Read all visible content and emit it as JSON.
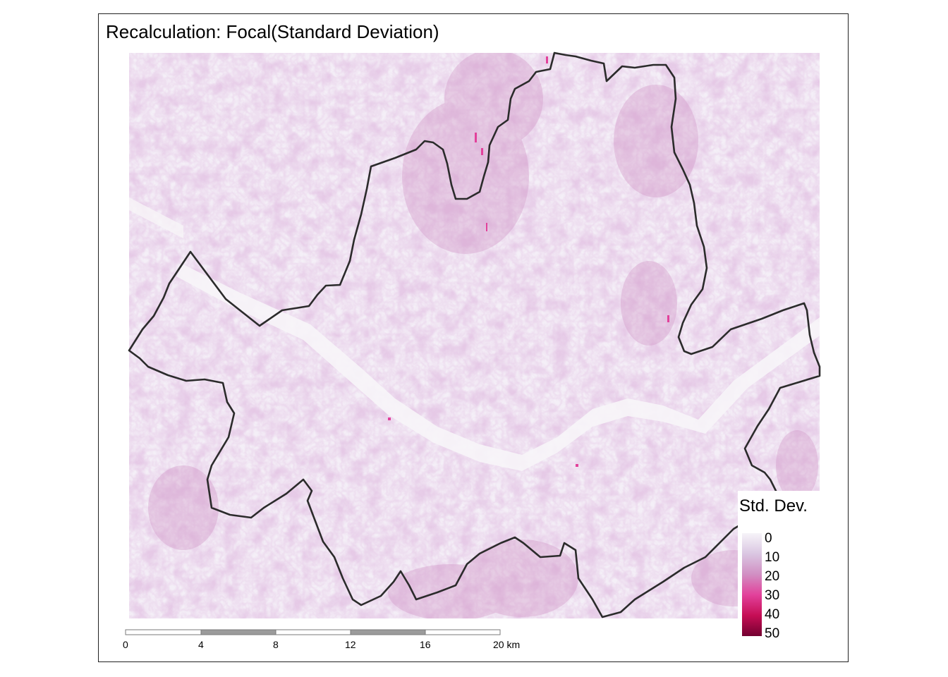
{
  "title": "Recalculation: Focal(Standard Deviation)",
  "legend": {
    "title": "Std. Dev.",
    "labels": [
      "0",
      "10",
      "20",
      "30",
      "40",
      "50"
    ],
    "colors": [
      "#f7f4f9",
      "#dac7e2",
      "#d18fc3",
      "#e2419b",
      "#c60e55",
      "#730030"
    ]
  },
  "scale_bar": {
    "labels": [
      "0",
      "4",
      "8",
      "12",
      "16",
      "20 km"
    ]
  },
  "colors": {
    "raster_background": "#f4eff7",
    "boundary": "#2b2b2b",
    "river": "#f7f5f8",
    "accent": "#d81a7a"
  }
}
